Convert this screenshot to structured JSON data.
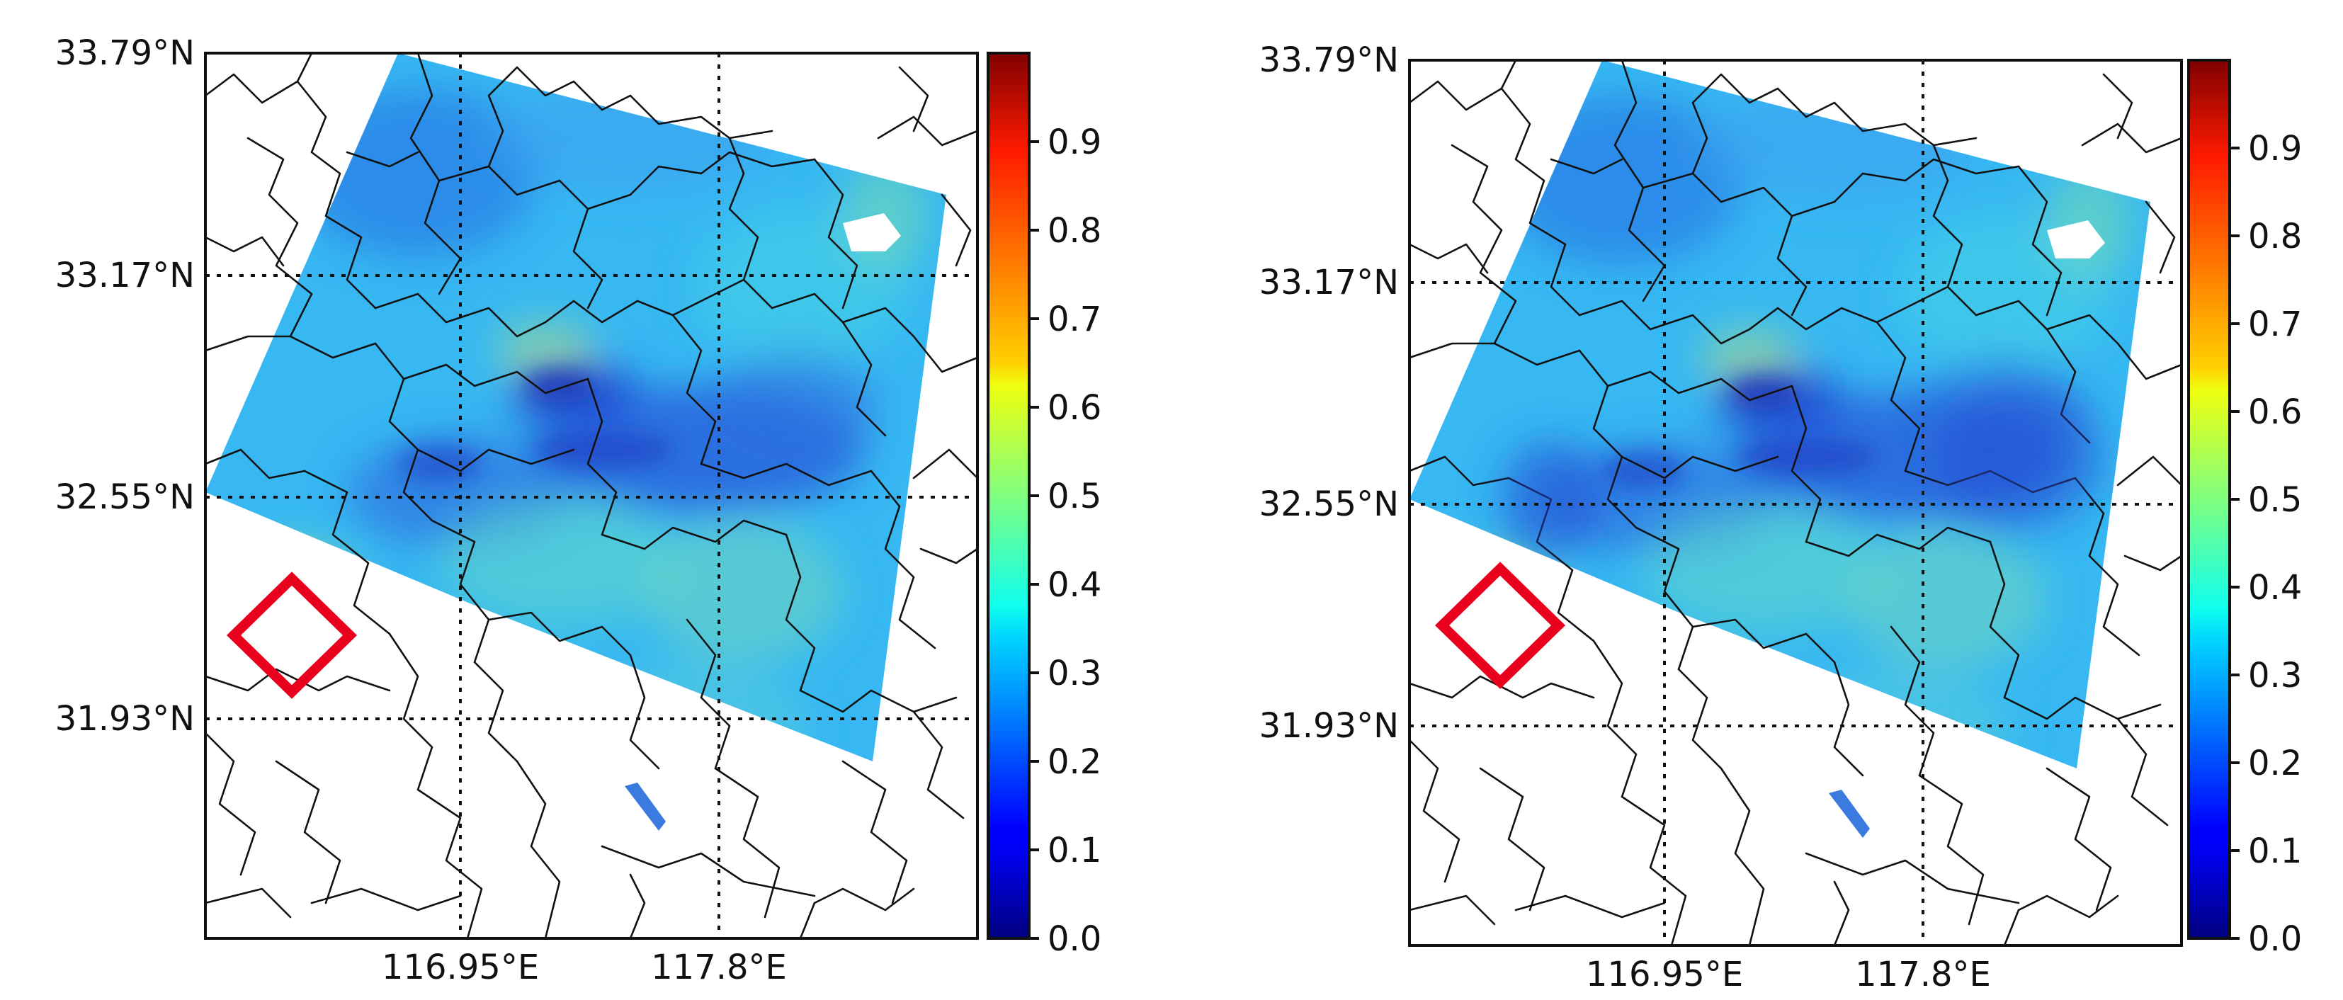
{
  "panels": [
    {
      "id": "left",
      "lat_ticks": [
        "33.79°N",
        "33.17°N",
        "32.55°N",
        "31.93°N"
      ],
      "lon_ticks": [
        "116.95°E",
        "117.8°E"
      ]
    },
    {
      "id": "right",
      "lat_ticks": [
        "33.79°N",
        "33.17°N",
        "32.55°N",
        "31.93°N"
      ],
      "lon_ticks": [
        "116.95°E",
        "117.8°E"
      ]
    }
  ],
  "colorbar": {
    "colormap": "jet",
    "range": [
      0.0,
      1.0
    ],
    "tick_values": [
      0.0,
      0.1,
      0.2,
      0.3,
      0.4,
      0.5,
      0.6,
      0.7,
      0.8,
      0.9
    ],
    "tick_labels": [
      "0.0",
      "0.1",
      "0.2",
      "0.3",
      "0.4",
      "0.5",
      "0.6",
      "0.7",
      "0.8",
      "0.9"
    ]
  },
  "marker": {
    "shape": "diamond",
    "color": "#e8001c"
  },
  "colors": {
    "no_data": "#ffffff",
    "dominant_field": "#37b8f2",
    "low_values": "#1f4fd8",
    "high_values": "#b8f060"
  }
}
